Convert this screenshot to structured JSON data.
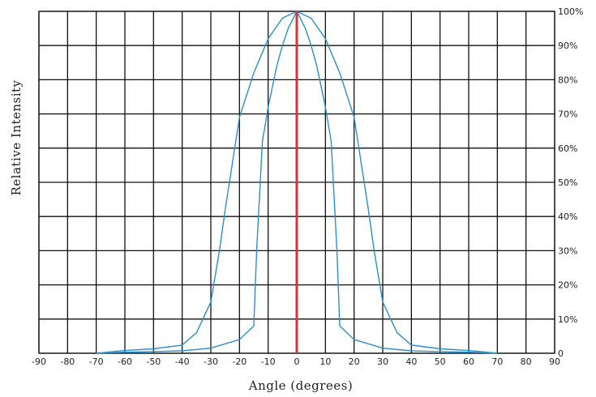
{
  "chart_data": {
    "type": "line",
    "xlabel": "Angle (degrees)",
    "ylabel": "Relative Intensity",
    "xlim": [
      -90,
      90
    ],
    "ylim": [
      0,
      100
    ],
    "grid": true,
    "x_ticks": [
      "-90",
      "-80",
      "-70",
      "-60",
      "-50",
      "-40",
      "-30",
      "-20",
      "-10",
      "0",
      "10",
      "20",
      "30",
      "40",
      "50",
      "60",
      "70",
      "80",
      "90"
    ],
    "y_ticks": [
      "0",
      "10%",
      "20%",
      "30%",
      "40%",
      "50%",
      "60%",
      "70%",
      "80%",
      "90%",
      "100%"
    ],
    "colors": {
      "curves": "#2a8fd0",
      "center_line": "#e03030",
      "grid": "#111111"
    },
    "center_line_x": 0,
    "series": [
      {
        "x": [
          -70,
          -60,
          -50,
          -40,
          -35,
          -30,
          -27,
          -25,
          -20,
          -15,
          -10,
          -5,
          0,
          5,
          10,
          15,
          20,
          25,
          27,
          30,
          35,
          40,
          50,
          60,
          70
        ],
        "y": [
          0,
          0.8,
          1.3,
          2.4,
          6,
          15,
          30,
          42,
          69,
          82,
          92,
          98,
          100,
          98,
          92,
          82,
          69,
          42,
          30,
          15,
          6,
          2.4,
          1.3,
          0.8,
          0
        ]
      },
      {
        "x": [
          -70,
          -60,
          -50,
          -40,
          -30,
          -20,
          -15,
          -14,
          -12,
          -10,
          -7,
          -5,
          -3,
          0,
          3,
          5,
          7,
          10,
          12,
          14,
          15,
          20,
          30,
          40,
          50,
          60,
          70
        ],
        "y": [
          0,
          0.3,
          0.5,
          0.7,
          1.5,
          4,
          8,
          30,
          62,
          72,
          84,
          90,
          95,
          100,
          95,
          90,
          84,
          72,
          62,
          30,
          8,
          4,
          1.5,
          0.7,
          0.5,
          0.3,
          0
        ]
      }
    ]
  }
}
